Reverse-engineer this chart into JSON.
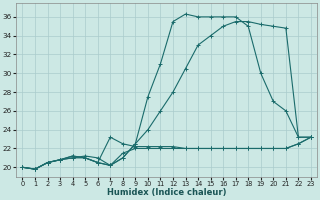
{
  "xlabel": "Humidex (Indice chaleur)",
  "bg_color": "#cce8e4",
  "line_color": "#1a6b6b",
  "grid_color": "#b8d8d0",
  "xlim": [
    -0.5,
    23.5
  ],
  "ylim": [
    19.0,
    37.5
  ],
  "yticks": [
    20,
    22,
    24,
    26,
    28,
    30,
    32,
    34,
    36
  ],
  "xticks": [
    0,
    1,
    2,
    3,
    4,
    5,
    6,
    7,
    8,
    9,
    10,
    11,
    12,
    13,
    14,
    15,
    16,
    17,
    18,
    19,
    20,
    21,
    22,
    23
  ],
  "lines": [
    [
      20.0,
      19.8,
      20.5,
      20.8,
      21.2,
      21.0,
      20.5,
      20.2,
      21.0,
      22.5,
      27.5,
      31.0,
      35.5,
      36.3,
      36.0,
      36.0,
      36.0,
      36.0,
      35.0,
      30.0,
      27.0,
      26.0,
      23.2,
      23.2
    ],
    [
      20.0,
      19.8,
      20.5,
      20.8,
      21.0,
      21.0,
      20.5,
      20.2,
      21.0,
      22.5,
      24.0,
      26.0,
      28.0,
      30.5,
      33.0,
      34.0,
      35.0,
      35.5,
      35.5,
      35.2,
      35.0,
      34.8,
      23.2,
      23.2
    ],
    [
      20.0,
      19.8,
      20.5,
      20.8,
      21.2,
      21.0,
      20.5,
      23.2,
      22.5,
      22.2,
      22.2,
      22.2,
      22.2,
      22.0,
      22.0,
      22.0,
      22.0,
      22.0,
      22.0,
      22.0,
      22.0,
      22.0,
      22.5,
      23.2
    ],
    [
      20.0,
      19.8,
      20.5,
      20.8,
      21.0,
      21.2,
      21.0,
      20.2,
      21.5,
      22.0,
      22.0,
      22.0,
      22.0,
      22.0,
      22.0,
      22.0,
      22.0,
      22.0,
      22.0,
      22.0,
      22.0,
      22.0,
      22.5,
      23.2
    ]
  ]
}
